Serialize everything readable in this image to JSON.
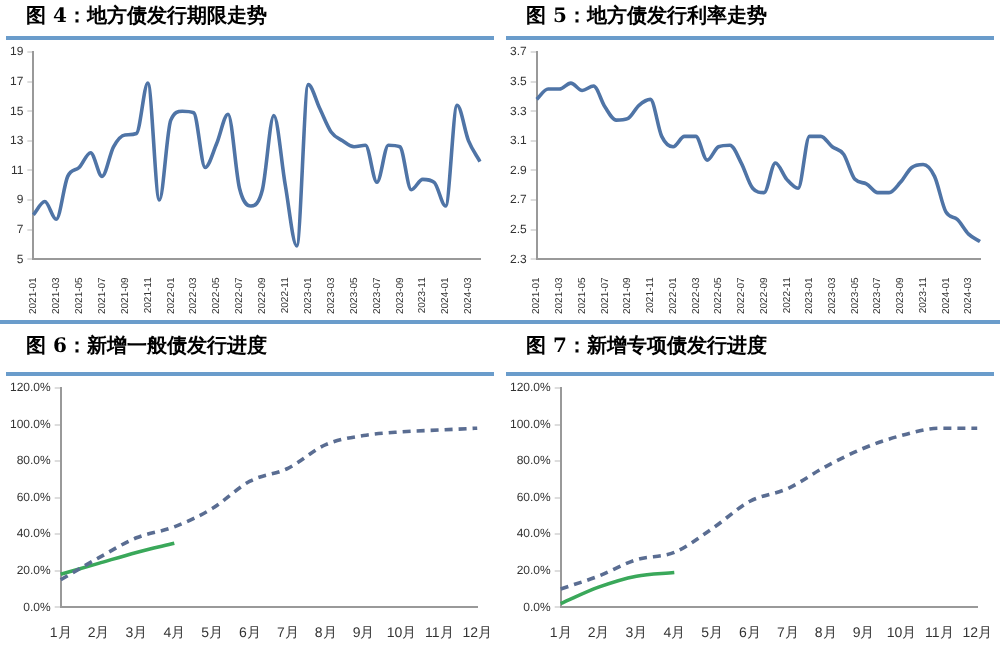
{
  "chart_data": [
    {
      "type": "line",
      "title": "图 4：地方债发行期限走势",
      "categories": [
        "2021-01",
        null,
        "2021-03",
        null,
        "2021-05",
        null,
        "2021-07",
        null,
        "2021-09",
        null,
        "2021-11",
        null,
        "2022-01",
        null,
        "2022-03",
        null,
        "2022-05",
        null,
        "2022-07",
        null,
        "2022-09",
        null,
        "2022-11",
        null,
        "2023-01",
        null,
        "2023-03",
        null,
        "2023-05",
        null,
        "2023-07",
        null,
        "2023-09",
        null,
        "2023-11",
        null,
        "2024-01",
        null,
        "2024-03",
        null
      ],
      "series": [
        {
          "color": "#4f74a6",
          "line_style": "solid",
          "values": [
            8.0,
            8.9,
            7.7,
            10.6,
            11.2,
            12.2,
            10.6,
            12.6,
            13.4,
            13.5,
            16.9,
            9.0,
            14.4,
            15.0,
            14.9,
            11.2,
            12.8,
            14.8,
            9.8,
            8.6,
            9.7,
            14.7,
            10.0,
            5.9,
            16.8,
            15.2,
            13.6,
            13.0,
            12.6,
            12.7,
            10.2,
            12.7,
            12.6,
            9.7,
            10.4,
            10.2,
            8.6,
            15.4,
            13.0,
            11.6
          ]
        }
      ],
      "ylim": [
        5,
        19
      ],
      "yticks": [
        5,
        7,
        9,
        11,
        13,
        15,
        17,
        19
      ],
      "grid": false,
      "marker": "none"
    },
    {
      "type": "line",
      "title": "图 5：地方债发行利率走势",
      "categories": [
        "2021-01",
        null,
        "2021-03",
        null,
        "2021-05",
        null,
        "2021-07",
        null,
        "2021-09",
        null,
        "2021-11",
        null,
        "2022-01",
        null,
        "2022-03",
        null,
        "2022-05",
        null,
        "2022-07",
        null,
        "2022-09",
        null,
        "2022-11",
        null,
        "2023-01",
        null,
        "2023-03",
        null,
        "2023-05",
        null,
        "2023-07",
        null,
        "2023-09",
        null,
        "2023-11",
        null,
        "2024-01",
        null,
        "2024-03",
        null
      ],
      "series": [
        {
          "color": "#4f74a6",
          "line_style": "solid",
          "values": [
            3.38,
            3.45,
            3.45,
            3.49,
            3.44,
            3.47,
            3.33,
            3.24,
            3.25,
            3.34,
            3.38,
            3.13,
            3.06,
            3.13,
            3.13,
            2.97,
            3.06,
            3.07,
            2.95,
            2.78,
            2.75,
            2.95,
            2.84,
            2.78,
            3.13,
            3.13,
            3.06,
            3.01,
            2.84,
            2.81,
            2.75,
            2.75,
            2.82,
            2.92,
            2.94,
            2.86,
            2.62,
            2.57,
            2.47,
            2.42
          ]
        }
      ],
      "ylim": [
        2.3,
        3.7
      ],
      "yticks": [
        2.3,
        2.5,
        2.7,
        2.9,
        3.1,
        3.3,
        3.5,
        3.7
      ],
      "grid": false,
      "marker": "none"
    },
    {
      "type": "line",
      "title": "图 6：新增一般债发行进度",
      "categories": [
        "1月",
        "2月",
        "3月",
        "4月",
        "5月",
        "6月",
        "7月",
        "8月",
        "9月",
        "10月",
        "11月",
        "12月"
      ],
      "series": [
        {
          "color": "#5a6d92",
          "line_style": "dashed",
          "values": [
            15,
            27,
            38,
            44,
            54,
            69,
            76,
            89,
            94,
            96,
            97,
            98
          ]
        },
        {
          "color": "#3aa85a",
          "line_style": "solid",
          "values": [
            18,
            24,
            30,
            35,
            null,
            null,
            null,
            null,
            null,
            null,
            null,
            null
          ]
        }
      ],
      "ylim": [
        0,
        120
      ],
      "yticks": [
        {
          "value": 0,
          "label": "0.0%"
        },
        {
          "value": 20,
          "label": "20.0%"
        },
        {
          "value": 40,
          "label": "40.0%"
        },
        {
          "value": 60,
          "label": "60.0%"
        },
        {
          "value": 80,
          "label": "80.0%"
        },
        {
          "value": 100,
          "label": "100.0%"
        },
        {
          "value": 120,
          "label": "120.0%"
        }
      ],
      "grid": false,
      "marker": "none"
    },
    {
      "type": "line",
      "title": "图 7：新增专项债发行进度",
      "categories": [
        "1月",
        "2月",
        "3月",
        "4月",
        "5月",
        "6月",
        "7月",
        "8月",
        "9月",
        "10月",
        "11月",
        "12月"
      ],
      "series": [
        {
          "color": "#5a6d92",
          "line_style": "dashed",
          "values": [
            10,
            17,
            26,
            30,
            43,
            58,
            65,
            77,
            87,
            94,
            98,
            98
          ]
        },
        {
          "color": "#3aa85a",
          "line_style": "solid",
          "values": [
            2,
            11,
            17,
            19,
            null,
            null,
            null,
            null,
            null,
            null,
            null,
            null
          ]
        }
      ],
      "ylim": [
        0,
        120
      ],
      "yticks": [
        {
          "value": 0,
          "label": "0.0%"
        },
        {
          "value": 20,
          "label": "20.0%"
        },
        {
          "value": 40,
          "label": "40.0%"
        },
        {
          "value": 60,
          "label": "60.0%"
        },
        {
          "value": 80,
          "label": "80.0%"
        },
        {
          "value": 100,
          "label": "100.0%"
        },
        {
          "value": 120,
          "label": "120.0%"
        }
      ],
      "grid": false,
      "marker": "none"
    }
  ]
}
